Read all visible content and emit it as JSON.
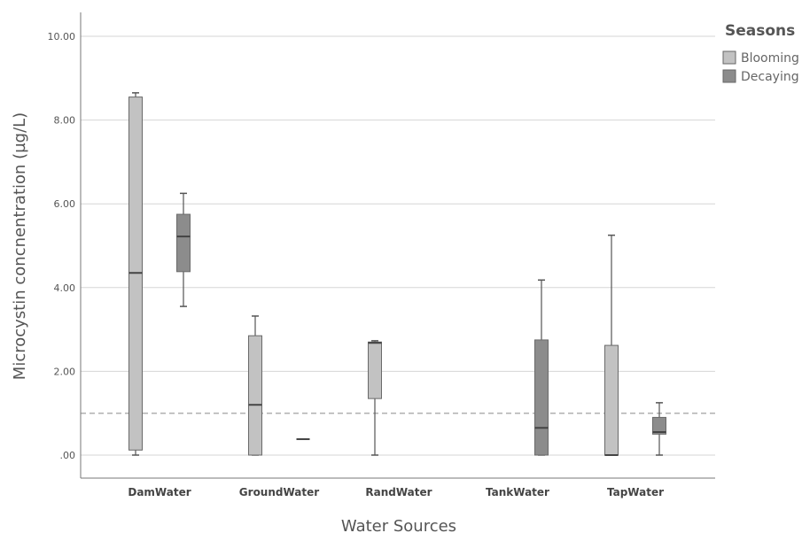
{
  "chart_data": {
    "type": "boxplot",
    "xlabel": "Water Sources",
    "ylabel": "Microcystin concnentration (µg/L)",
    "ylim": [
      0,
      10.5
    ],
    "yticks": [
      0,
      2,
      4,
      6,
      8,
      10
    ],
    "ytick_labels": [
      ".00",
      "2.00",
      "4.00",
      "6.00",
      "8.00",
      "10.00"
    ],
    "grid": true,
    "reference_line": 1.0,
    "categories": [
      "DamWater",
      "GroundWater",
      "RandWater",
      "TankWater",
      "TapWater"
    ],
    "legend": {
      "title": "Seasons",
      "position": "top-right"
    },
    "series": [
      {
        "name": "Blooming",
        "color": "#c2c2c2",
        "boxes": [
          {
            "category": "DamWater",
            "min": 0.0,
            "q1": 0.12,
            "median": 4.35,
            "q3": 8.55,
            "max": 8.65
          },
          {
            "category": "GroundWater",
            "min": 0.0,
            "q1": 0.0,
            "median": 1.2,
            "q3": 2.85,
            "max": 3.32
          },
          {
            "category": "RandWater",
            "min": 0.0,
            "q1": 1.35,
            "median": 2.68,
            "q3": 2.7,
            "max": 2.73
          },
          {
            "category": "TankWater",
            "empty": true
          },
          {
            "category": "TapWater",
            "min": 0.0,
            "q1": 0.0,
            "median": 0.0,
            "q3": 2.62,
            "max": 5.25
          }
        ]
      },
      {
        "name": "Decaying",
        "color": "#8c8c8c",
        "boxes": [
          {
            "category": "DamWater",
            "min": 3.55,
            "q1": 4.38,
            "median": 5.22,
            "q3": 5.75,
            "max": 6.25
          },
          {
            "category": "GroundWater",
            "min": 0.38,
            "q1": 0.38,
            "median": 0.38,
            "q3": 0.38,
            "max": 0.38
          },
          {
            "category": "RandWater",
            "empty": true
          },
          {
            "category": "TankWater",
            "min": 0.0,
            "q1": 0.0,
            "median": 0.65,
            "q3": 2.75,
            "max": 4.18
          },
          {
            "category": "TapWater",
            "min": 0.0,
            "q1": 0.5,
            "median": 0.55,
            "q3": 0.9,
            "max": 1.25
          }
        ]
      }
    ]
  }
}
